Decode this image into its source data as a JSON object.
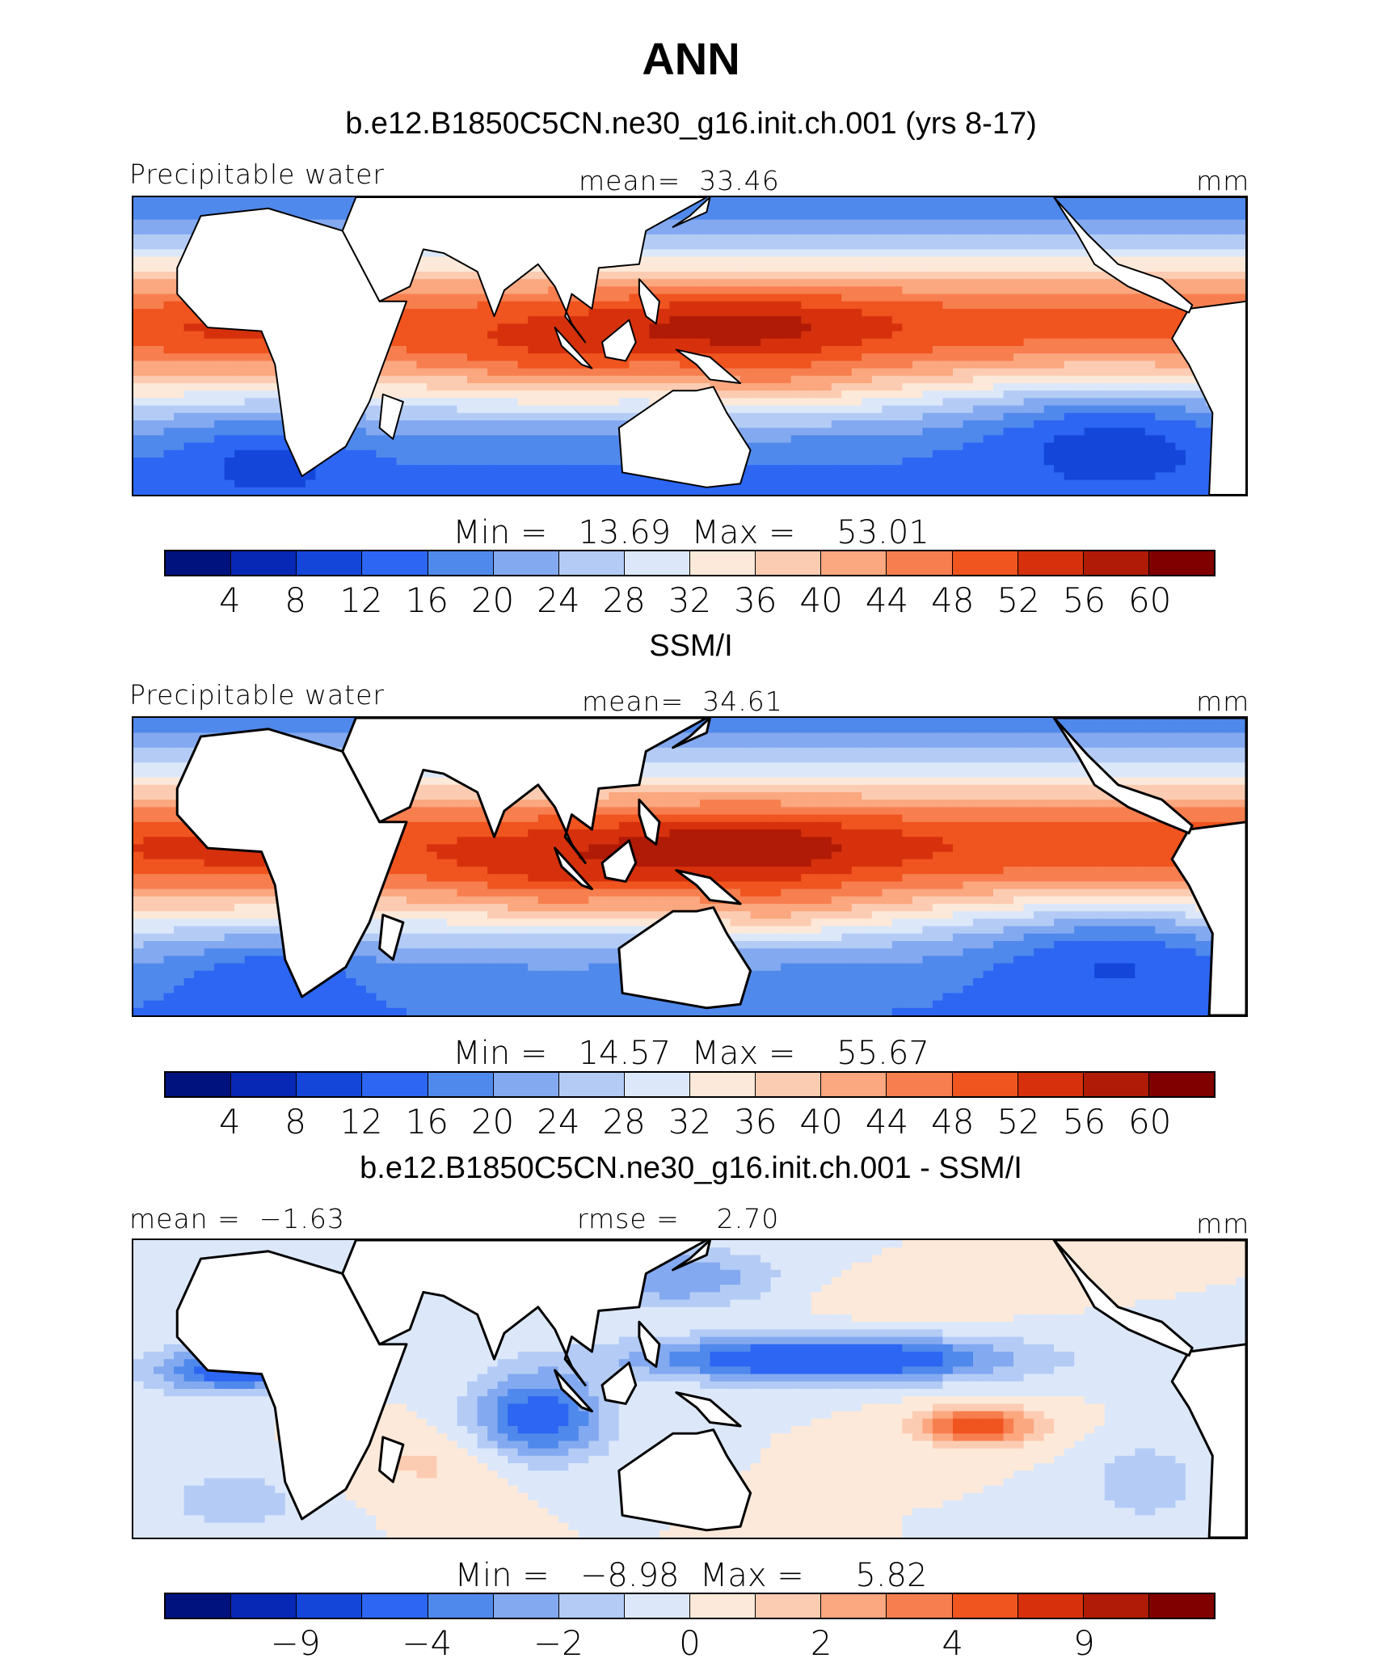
{
  "title": "ANN",
  "colors": {
    "levels15": [
      "#00127e",
      "#0628b4",
      "#1446da",
      "#2c66f2",
      "#5089ec",
      "#83a9f0",
      "#b4ccf5",
      "#dce8fa",
      "#fde9d9",
      "#fcccb2",
      "#fba77f",
      "#f77f4f",
      "#f0541f",
      "#d6310c",
      "#b01b07",
      "#800000"
    ],
    "land": "#ffffff",
    "coast": "#000000"
  },
  "panels": [
    {
      "title": "b.e12.B1850C5CN.ne30_g16.init.ch.001 (yrs 8-17)",
      "left_label": "Precipitable water",
      "center_label": "mean=  33.46",
      "right_label": "mm",
      "stats": "Min =   13.69  Max =    53.01",
      "ticks": [
        "4",
        "8",
        "12",
        "16",
        "20",
        "24",
        "28",
        "32",
        "36",
        "40",
        "44",
        "48",
        "52",
        "56",
        "60"
      ],
      "field": "model"
    },
    {
      "title": "SSM/I",
      "left_label": "Precipitable water",
      "center_label": "mean=  34.61",
      "right_label": "mm",
      "stats": "Min =   14.57  Max =    55.67",
      "ticks": [
        "4",
        "8",
        "12",
        "16",
        "20",
        "24",
        "28",
        "32",
        "36",
        "40",
        "44",
        "48",
        "52",
        "56",
        "60"
      ],
      "field": "obs"
    },
    {
      "title": "b.e12.B1850C5CN.ne30_g16.init.ch.001 - SSM/I",
      "left_label": "mean =  −1.63",
      "center_label": "rmse =    2.70",
      "right_label": "mm",
      "stats": "Min =   −8.98  Max =     5.82",
      "ticks": [
        "",
        "−9",
        "",
        "−4",
        "",
        "−2",
        "",
        "0",
        "",
        "2",
        "",
        "4",
        "",
        "9",
        ""
      ],
      "field": "diff"
    }
  ]
}
